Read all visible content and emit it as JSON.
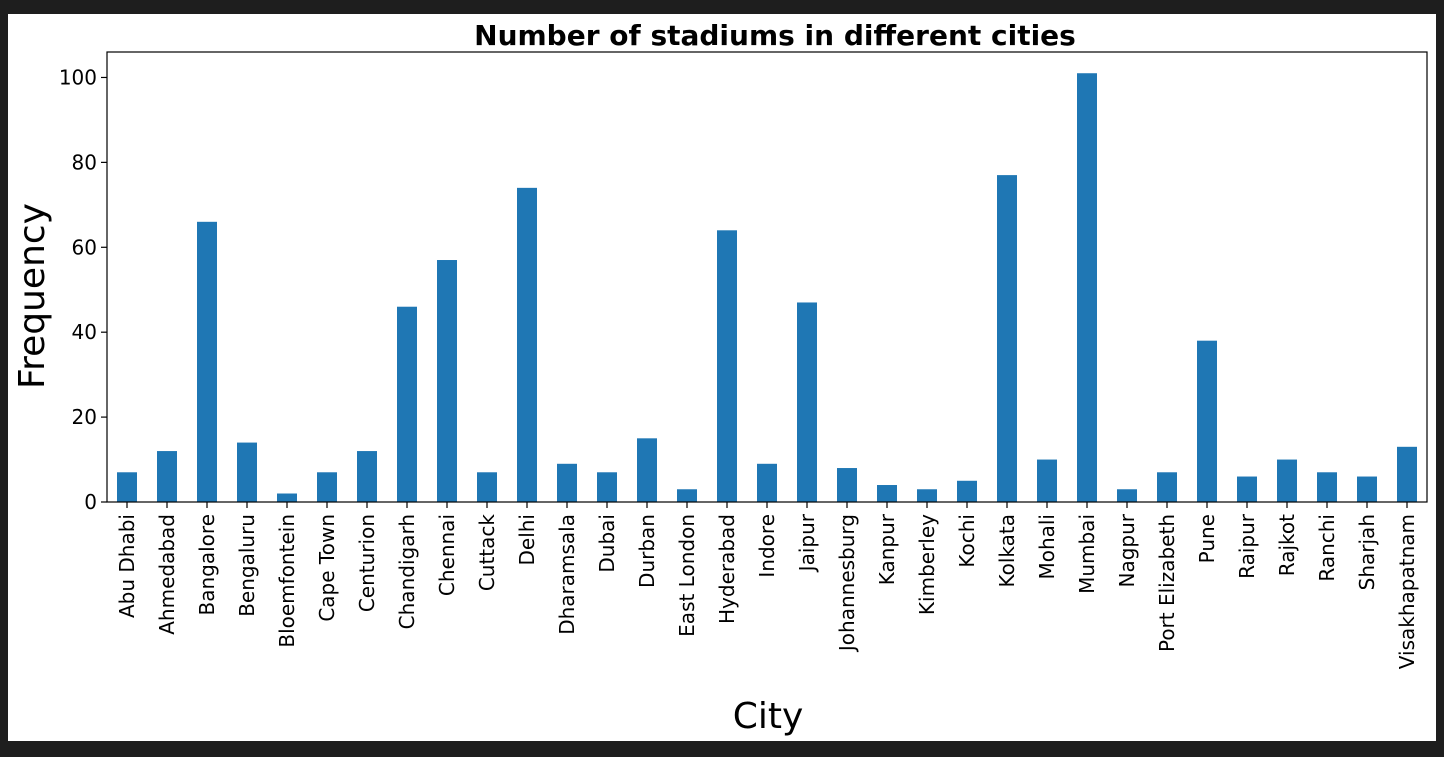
{
  "colors": {
    "bar": "#1f77b4",
    "axis": "#000000",
    "figure_background": "#ffffff",
    "page_background": "#1e1e1e"
  },
  "chart_data": {
    "type": "bar",
    "title": "Number of stadiums in different cities",
    "xlabel": "City",
    "ylabel": "Frequency",
    "ylim": [
      0,
      106
    ],
    "yticks": [
      0,
      20,
      40,
      60,
      80,
      100
    ],
    "grid": false,
    "legend": "none",
    "categories": [
      "Abu Dhabi",
      "Ahmedabad",
      "Bangalore",
      "Bengaluru",
      "Bloemfontein",
      "Cape Town",
      "Centurion",
      "Chandigarh",
      "Chennai",
      "Cuttack",
      "Delhi",
      "Dharamsala",
      "Dubai",
      "Durban",
      "East London",
      "Hyderabad",
      "Indore",
      "Jaipur",
      "Johannesburg",
      "Kanpur",
      "Kimberley",
      "Kochi",
      "Kolkata",
      "Mohali",
      "Mumbai",
      "Nagpur",
      "Port Elizabeth",
      "Pune",
      "Raipur",
      "Rajkot",
      "Ranchi",
      "Sharjah",
      "Visakhapatnam"
    ],
    "values": [
      7,
      12,
      66,
      14,
      2,
      7,
      12,
      46,
      57,
      7,
      74,
      9,
      7,
      15,
      3,
      64,
      9,
      47,
      8,
      4,
      3,
      5,
      77,
      10,
      101,
      3,
      7,
      38,
      6,
      10,
      7,
      6,
      13
    ]
  }
}
